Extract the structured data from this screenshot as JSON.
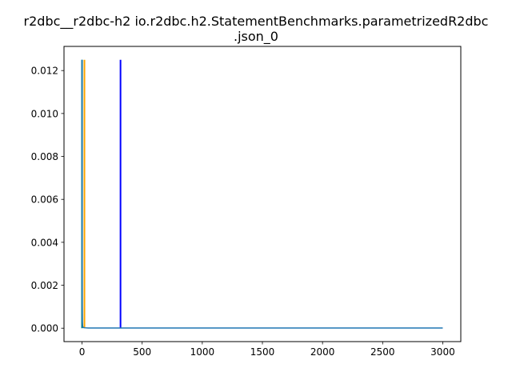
{
  "chart_data": {
    "type": "line",
    "title_line1": "r2dbc__r2dbc-h2 io.r2dbc.h2.StatementBenchmarks.parametrizedR2dbc",
    "title_line2": ".json_0",
    "xlabel": "",
    "ylabel": "",
    "xlim": [
      -150,
      3150
    ],
    "ylim": [
      -0.000625,
      0.013125
    ],
    "x_ticks": [
      0,
      500,
      1000,
      1500,
      2000,
      2500,
      3000
    ],
    "x_tick_labels": [
      "0",
      "500",
      "1000",
      "1500",
      "2000",
      "2500",
      "3000"
    ],
    "y_ticks": [
      0.0,
      0.002,
      0.004,
      0.006,
      0.008,
      0.01,
      0.012
    ],
    "y_tick_labels": [
      "0.000",
      "0.002",
      "0.004",
      "0.006",
      "0.008",
      "0.010",
      "0.012"
    ],
    "grid": false,
    "vertical_lines": [
      {
        "x": 0,
        "y0": 0.0,
        "y1": 0.0125,
        "color": "#008080"
      },
      {
        "x": 20,
        "y0": 0.0,
        "y1": 0.0125,
        "color": "#ffa500"
      },
      {
        "x": 320,
        "y0": 0.0,
        "y1": 0.0125,
        "color": "#0000ff"
      }
    ],
    "series": [
      {
        "color": "#1f77b4",
        "x": [
          0,
          1,
          2,
          3,
          5,
          8,
          12,
          20,
          50,
          100,
          200,
          320,
          500,
          1000,
          1500,
          2000,
          2500,
          3000
        ],
        "y": [
          0.0125,
          0.004,
          0.001,
          0.0003,
          0.0001,
          5e-05,
          3e-05,
          2e-05,
          1e-05,
          1e-05,
          1e-05,
          1e-05,
          1e-05,
          1e-05,
          1e-05,
          1e-05,
          1e-05,
          1e-05
        ]
      }
    ]
  }
}
